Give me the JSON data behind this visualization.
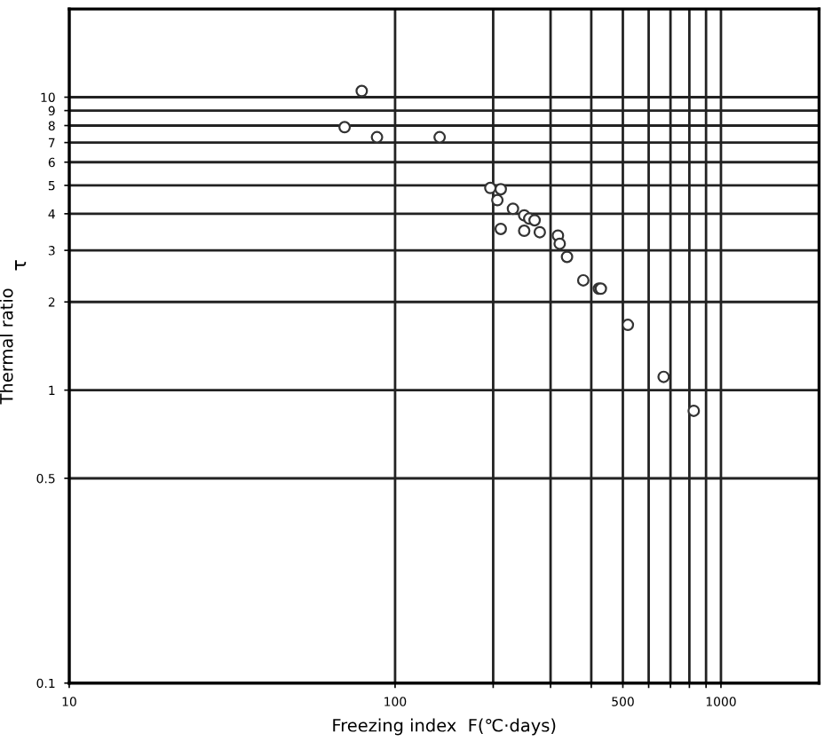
{
  "chart_data": {
    "type": "scatter",
    "xlabel": "Freezing index  F(℃·days)",
    "ylabel": "Thermal ratio",
    "annotations": [
      "τ"
    ],
    "x": [
      79,
      70,
      88,
      137,
      196,
      211,
      206,
      230,
      249,
      258,
      268,
      211,
      249,
      278,
      316,
      320,
      337,
      378,
      422,
      428,
      518,
      667,
      825
    ],
    "series": [
      {
        "color": "#333333",
        "values": [
          10.5,
          7.9,
          7.3,
          7.3,
          4.9,
          4.85,
          4.45,
          4.16,
          3.95,
          3.85,
          3.8,
          3.55,
          3.5,
          3.46,
          3.37,
          3.16,
          2.85,
          2.37,
          2.22,
          2.22,
          1.67,
          1.11,
          0.85
        ]
      }
    ],
    "log": "xy",
    "marker": "circle",
    "xlim": [
      10,
      2000
    ],
    "ylim": [
      0.1,
      20
    ],
    "xticks": [
      10,
      100,
      {
        "value": 200,
        "label": null
      },
      {
        "value": 300,
        "label": null
      },
      {
        "value": 400,
        "label": null
      },
      500,
      {
        "value": 600,
        "label": null
      },
      {
        "value": 700,
        "label": null
      },
      {
        "value": 800,
        "label": null
      },
      {
        "value": 900,
        "label": null
      },
      1000
    ],
    "yticks": [
      0.1,
      0.5,
      1,
      2,
      3,
      4,
      5,
      6,
      7,
      8,
      9,
      10
    ],
    "grid": true
  }
}
